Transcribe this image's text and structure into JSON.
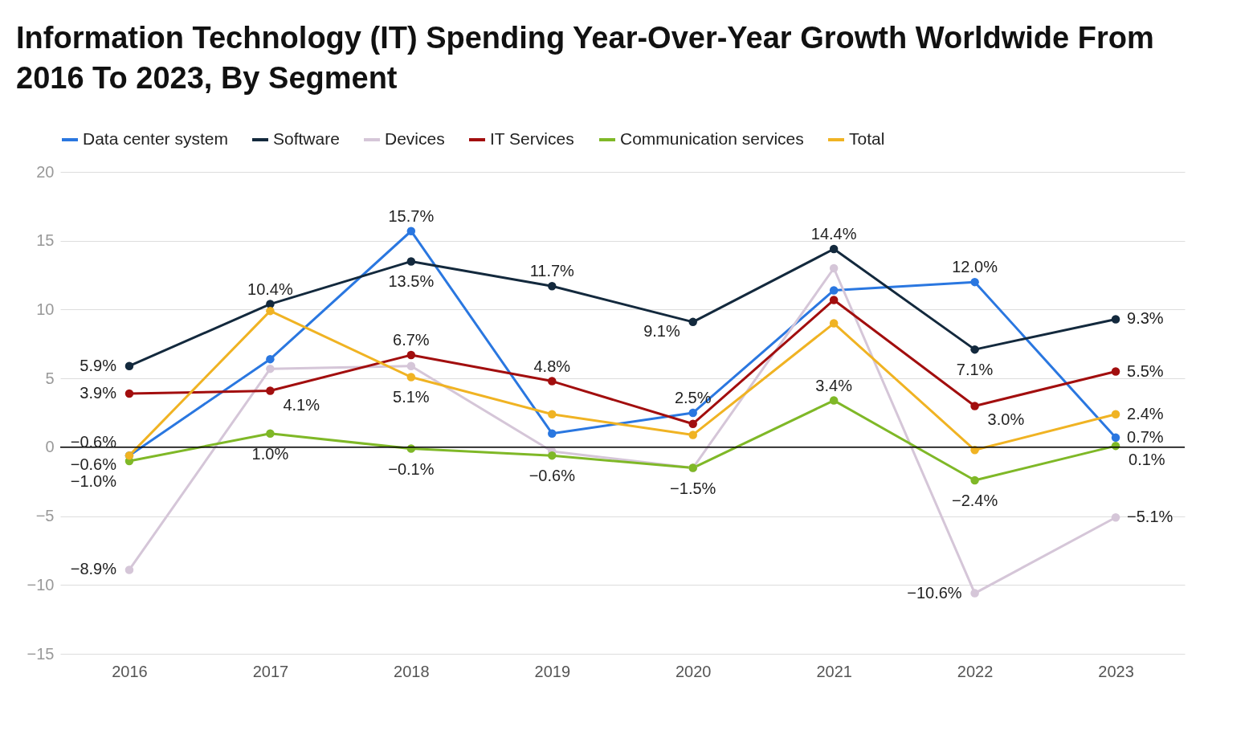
{
  "chart_data": {
    "type": "line",
    "title": "Information Technology (IT) Spending Year-Over-Year Growth Worldwide From 2016 To 2023, By Segment",
    "categories": [
      "2016",
      "2017",
      "2018",
      "2019",
      "2020",
      "2021",
      "2022",
      "2023"
    ],
    "series": [
      {
        "name": "Data center system",
        "color": "#2a77e0",
        "values": [
          -0.6,
          6.4,
          15.7,
          1.0,
          2.5,
          11.4,
          12.0,
          0.7
        ],
        "value_labels": [
          "−0.6%",
          null,
          "15.7%",
          null,
          "2.5%",
          null,
          "12.0%",
          "0.7%"
        ]
      },
      {
        "name": "Software",
        "color": "#13293d",
        "values": [
          5.9,
          10.4,
          13.5,
          11.7,
          9.1,
          14.4,
          7.1,
          9.3
        ],
        "value_labels": [
          "5.9%",
          "10.4%",
          "13.5%",
          "11.7%",
          "9.1%",
          "14.4%",
          "7.1%",
          "9.3%"
        ]
      },
      {
        "name": "Devices",
        "color": "#d5c6d8",
        "values": [
          -8.9,
          5.7,
          5.9,
          -0.3,
          -1.5,
          13.0,
          -10.6,
          -5.1
        ],
        "value_labels": [
          "−8.9%",
          null,
          null,
          null,
          null,
          null,
          "−10.6%",
          "−5.1%"
        ]
      },
      {
        "name": "IT Services",
        "color": "#a20e0e",
        "values": [
          3.9,
          4.1,
          6.7,
          4.8,
          1.7,
          10.7,
          3.0,
          5.5
        ],
        "value_labels": [
          "3.9%",
          "4.1%",
          "6.7%",
          "4.8%",
          null,
          null,
          "3.0%",
          "5.5%"
        ]
      },
      {
        "name": "Communication services",
        "color": "#7fb827",
        "values": [
          -1.0,
          1.0,
          -0.1,
          -0.6,
          -1.5,
          3.4,
          -2.4,
          0.1
        ],
        "value_labels": [
          "−1.0%",
          "1.0%",
          "−0.1%",
          "−0.6%",
          "−1.5%",
          "3.4%",
          "−2.4%",
          "0.1%"
        ]
      },
      {
        "name": "Total",
        "color": "#f0b323",
        "values": [
          -0.6,
          9.9,
          5.1,
          2.4,
          0.9,
          9.0,
          -0.2,
          2.4
        ],
        "value_labels": [
          "−0.6%",
          null,
          "5.1%",
          null,
          null,
          null,
          null,
          "2.4%"
        ]
      }
    ],
    "ylim": [
      -15,
      20
    ],
    "yticks": [
      {
        "value": -15,
        "label": "−15"
      },
      {
        "value": -10,
        "label": "−10"
      },
      {
        "value": -5,
        "label": "−5"
      },
      0,
      5,
      10,
      15,
      20
    ],
    "ref_lines": [
      {
        "axis": "y",
        "value": 0,
        "color": "#000000"
      }
    ],
    "grid": "y",
    "legend": "top left",
    "marker": "circle",
    "line_style": "solid"
  }
}
